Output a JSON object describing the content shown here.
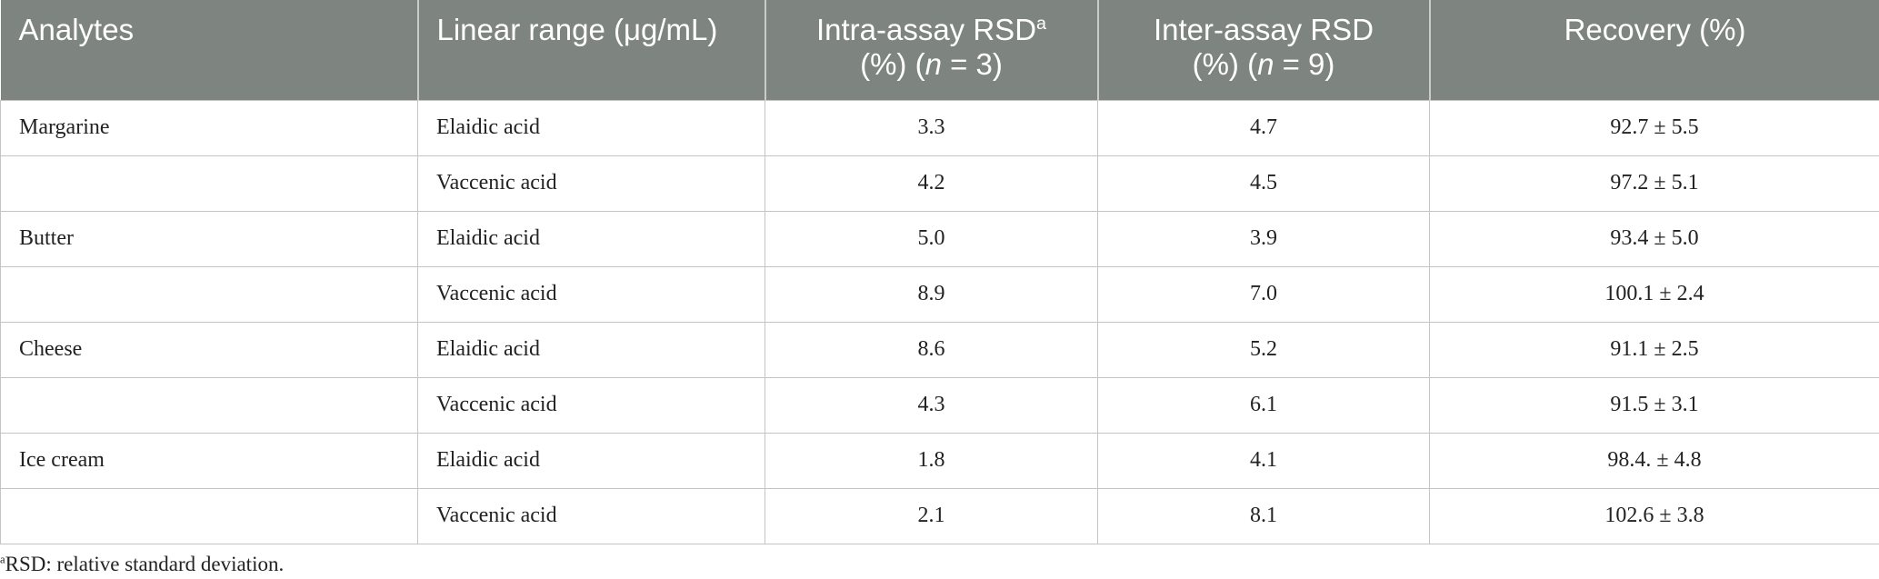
{
  "table": {
    "header": [
      {
        "text": "Analytes"
      },
      {
        "text": "Linear range (μg/mL)"
      },
      {
        "text": "Intra-assay RSD",
        "sup": "a",
        "pre": "(%) (",
        "italic": "n",
        "post": " = 3)"
      },
      {
        "text": "Inter-assay RSD",
        "pre": "(%) (",
        "italic": "n",
        "post": " = 9)"
      },
      {
        "text": "Recovery (%)"
      }
    ],
    "rows": [
      [
        "Margarine",
        "Elaidic acid",
        "3.3",
        "4.7",
        "92.7 ± 5.5"
      ],
      [
        null,
        "Vaccenic acid",
        "4.2",
        "4.5",
        "97.2 ± 5.1"
      ],
      [
        "Butter",
        "Elaidic acid",
        "5.0",
        "3.9",
        "93.4 ± 5.0"
      ],
      [
        null,
        "Vaccenic acid",
        "8.9",
        "7.0",
        "100.1 ± 2.4"
      ],
      [
        "Cheese",
        "Elaidic acid",
        "8.6",
        "5.2",
        "91.1 ± 2.5"
      ],
      [
        null,
        "Vaccenic acid",
        "4.3",
        "6.1",
        "91.5 ± 3.1"
      ],
      [
        "Ice cream",
        "Elaidic acid",
        "1.8",
        "4.1",
        "98.4. ± 4.8"
      ],
      [
        null,
        "Vaccenic acid",
        "2.1",
        "8.1",
        "102.6 ± 3.8"
      ]
    ],
    "footnote": {
      "sup": "a",
      "text": "RSD: relative standard deviation."
    }
  }
}
